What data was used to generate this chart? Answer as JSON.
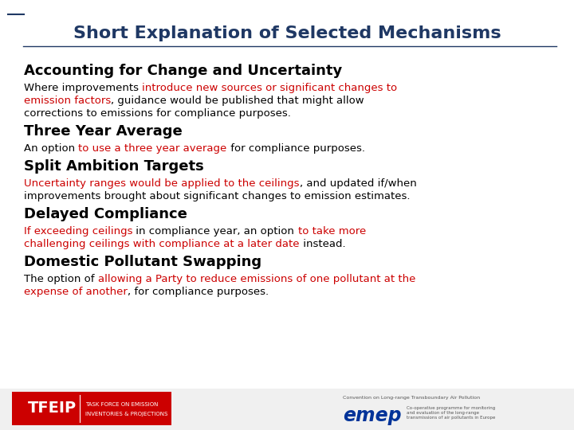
{
  "title": "Short Explanation of Selected Mechanisms",
  "title_color": "#1F3864",
  "title_fontsize": 16,
  "bg_color": "#FFFFFF",
  "sections": [
    {
      "heading": "Accounting for Change and Uncertainty",
      "body": [
        [
          {
            "text": "Where improvements ",
            "color": "#000000"
          },
          {
            "text": "introduce new sources or significant changes to",
            "color": "#CC0000"
          }
        ],
        [
          {
            "text": "emission factors",
            "color": "#CC0000"
          },
          {
            "text": ", guidance would be published that might allow",
            "color": "#000000"
          }
        ],
        [
          {
            "text": "corrections to emissions for compliance purposes.",
            "color": "#000000"
          }
        ]
      ]
    },
    {
      "heading": "Three Year Average",
      "body": [
        [
          {
            "text": "An option ",
            "color": "#000000"
          },
          {
            "text": "to use a three year average",
            "color": "#CC0000"
          },
          {
            "text": " for compliance purposes.",
            "color": "#000000"
          }
        ]
      ]
    },
    {
      "heading": "Split Ambition Targets",
      "body": [
        [
          {
            "text": "Uncertainty ranges would be applied to the ceilings",
            "color": "#CC0000"
          },
          {
            "text": ", and updated if/when",
            "color": "#000000"
          }
        ],
        [
          {
            "text": "improvements brought about significant changes to emission estimates.",
            "color": "#000000"
          }
        ]
      ]
    },
    {
      "heading": "Delayed Compliance",
      "body": [
        [
          {
            "text": "If exceeding ceilings",
            "color": "#CC0000"
          },
          {
            "text": " in compliance year, an option ",
            "color": "#000000"
          },
          {
            "text": "to take more",
            "color": "#CC0000"
          }
        ],
        [
          {
            "text": "challenging ceilings with compliance at a later date",
            "color": "#CC0000"
          },
          {
            "text": " instead.",
            "color": "#000000"
          }
        ]
      ]
    },
    {
      "heading": "Domestic Pollutant Swapping",
      "body": [
        [
          {
            "text": "The option of ",
            "color": "#000000"
          },
          {
            "text": "allowing a Party to reduce emissions of one pollutant at the",
            "color": "#CC0000"
          }
        ],
        [
          {
            "text": "expense of another",
            "color": "#CC0000"
          },
          {
            "text": ", for compliance purposes.",
            "color": "#000000"
          }
        ]
      ]
    }
  ]
}
